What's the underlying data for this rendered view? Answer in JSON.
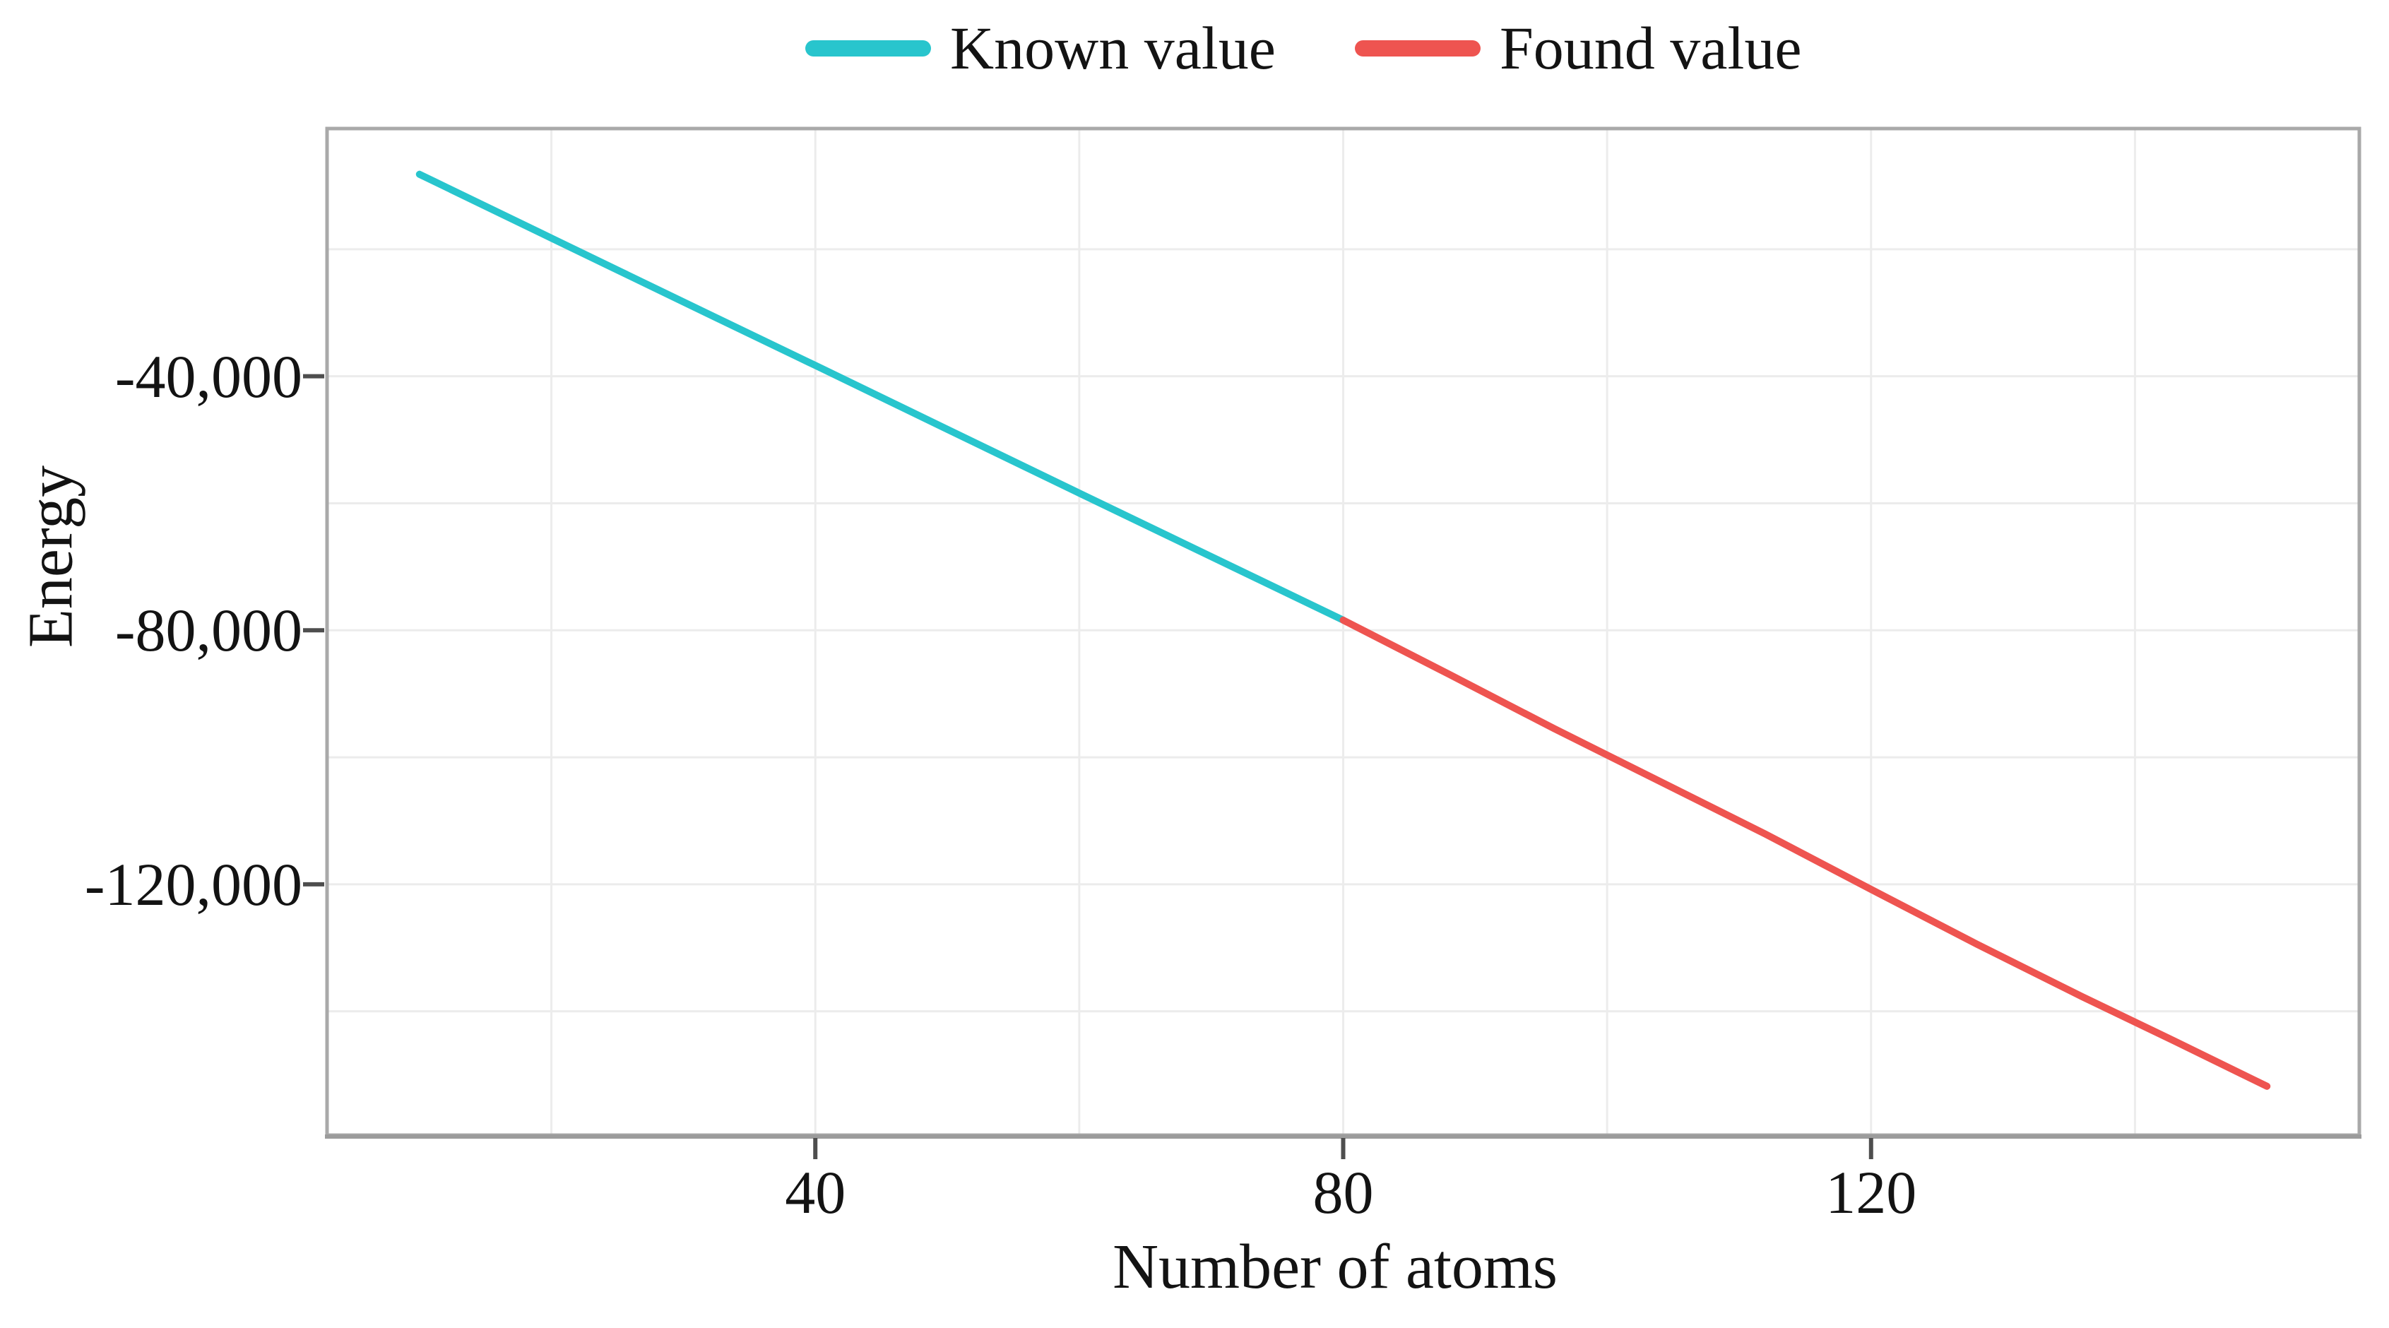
{
  "figure": {
    "background": "#ffffff",
    "text_color": "#131313",
    "border_color": "#a9a9a9",
    "grid_color": "#ececec",
    "tick_color": "#4e4e4e"
  },
  "chart_data": {
    "type": "line",
    "title": "",
    "xlabel": "Number of atoms",
    "ylabel": "Energy",
    "xlim": [
      3,
      157
    ],
    "ylim": [
      -159500,
      -1000
    ],
    "grid": "on",
    "legend_position": "top-center",
    "x_ticks": [
      40,
      80,
      120
    ],
    "x_tick_labels": [
      "40",
      "80",
      "120"
    ],
    "y_ticks": [
      -40000,
      -80000,
      -120000
    ],
    "y_tick_labels": [
      "-40,000",
      "-80,000",
      "-120,000"
    ],
    "x_gridlines": [
      20,
      40,
      60,
      80,
      100,
      120,
      140
    ],
    "y_gridlines": [
      -20000,
      -40000,
      -60000,
      -80000,
      -100000,
      -120000,
      -140000
    ],
    "series": [
      {
        "name": "Known value",
        "color": "#28c5cd",
        "points": [
          [
            10,
            -8200
          ],
          [
            20,
            -18250
          ],
          [
            30,
            -28300
          ],
          [
            40,
            -38300
          ],
          [
            50,
            -48350
          ],
          [
            60,
            -58400
          ],
          [
            70,
            -68400
          ],
          [
            80,
            -78400
          ]
        ]
      },
      {
        "name": "Found value",
        "color": "#ee5450",
        "points": [
          [
            80,
            -78400
          ],
          [
            88,
            -86900
          ],
          [
            96,
            -95500
          ],
          [
            104,
            -103800
          ],
          [
            112,
            -112100
          ],
          [
            120,
            -120800
          ],
          [
            128,
            -129400
          ],
          [
            136,
            -137700
          ],
          [
            143,
            -144700
          ],
          [
            150,
            -151800
          ]
        ]
      }
    ]
  }
}
